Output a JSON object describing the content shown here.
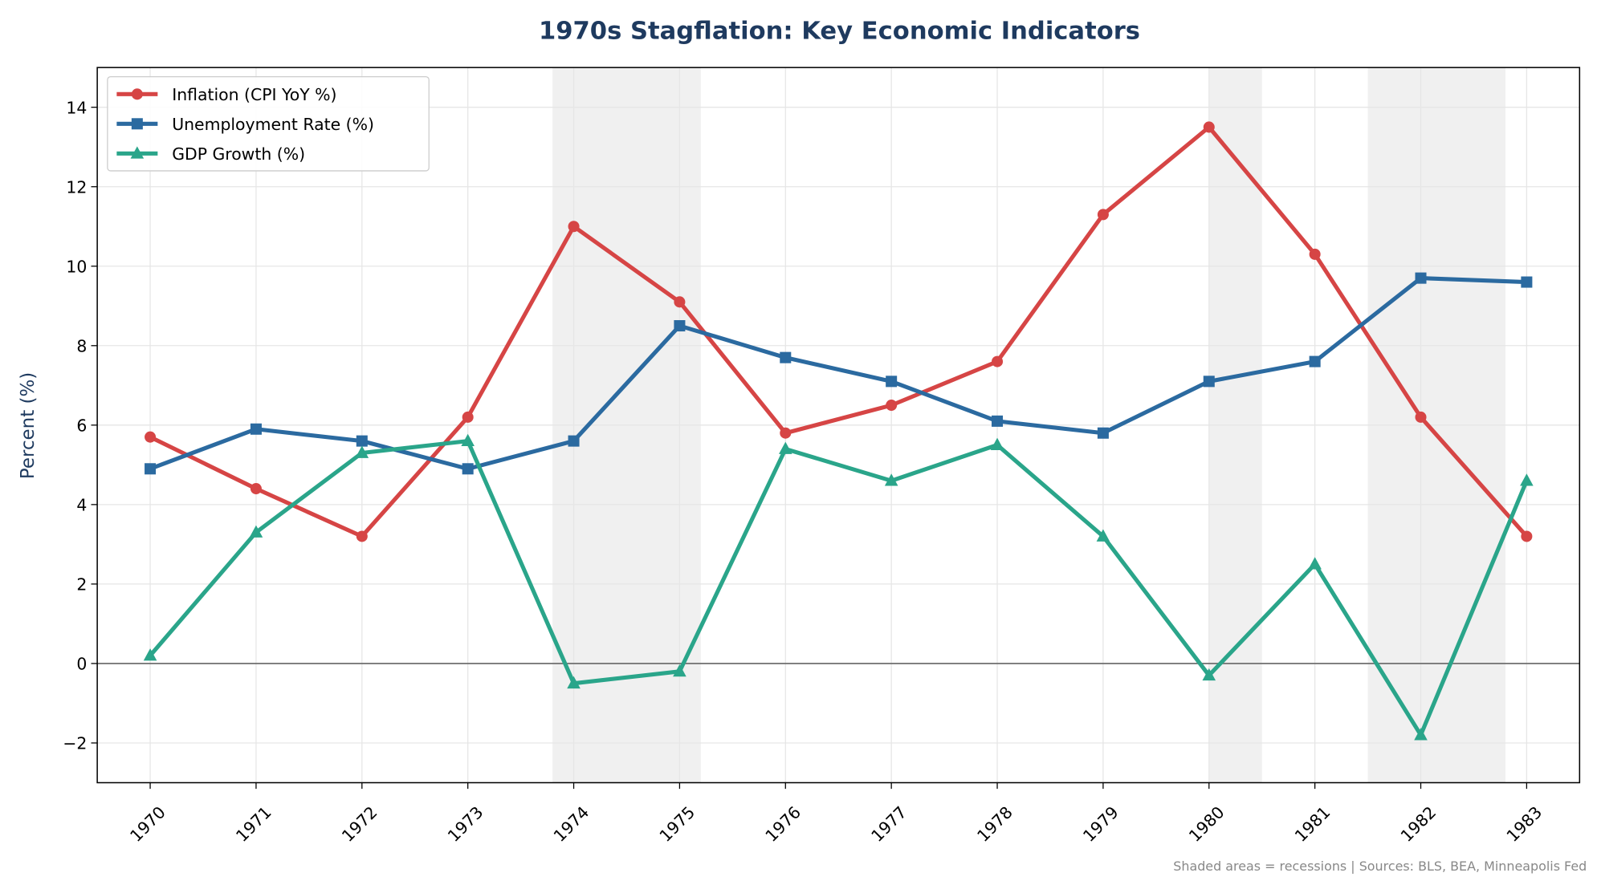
{
  "chart_data": {
    "type": "line",
    "title": "1970s Stagflation: Key Economic Indicators",
    "xlabel": "",
    "ylabel": "Percent (%)",
    "x": [
      1970,
      1971,
      1972,
      1973,
      1974,
      1975,
      1976,
      1977,
      1978,
      1979,
      1980,
      1981,
      1982,
      1983
    ],
    "xlim": [
      1969.5,
      1983.5
    ],
    "ylim": [
      -3,
      15
    ],
    "yticks": [
      -2,
      0,
      2,
      4,
      6,
      8,
      10,
      12,
      14
    ],
    "grid": true,
    "legend_position": "top-left",
    "zero_line": true,
    "series": [
      {
        "name": "Inflation (CPI YoY %)",
        "color": "#d64545",
        "marker": "circle",
        "values": [
          5.7,
          4.4,
          3.2,
          6.2,
          11.0,
          9.1,
          5.8,
          6.5,
          7.6,
          11.3,
          13.5,
          10.3,
          6.2,
          3.2
        ]
      },
      {
        "name": "Unemployment Rate (%)",
        "color": "#2b6aa0",
        "marker": "square",
        "values": [
          4.9,
          5.9,
          5.6,
          4.9,
          5.6,
          8.5,
          7.7,
          7.1,
          6.1,
          5.8,
          7.1,
          7.6,
          9.7,
          9.6
        ]
      },
      {
        "name": "GDP Growth (%)",
        "color": "#2aa58a",
        "marker": "triangle",
        "values": [
          0.2,
          3.3,
          5.3,
          5.6,
          -0.5,
          -0.2,
          5.4,
          4.6,
          5.5,
          3.2,
          -0.3,
          2.5,
          -1.8,
          4.6
        ]
      }
    ],
    "recessions": [
      [
        1973.8,
        1975.2
      ],
      [
        1980.0,
        1980.5
      ],
      [
        1981.5,
        1982.8
      ]
    ],
    "footnote": "Shaded areas = recessions | Sources: BLS, BEA, Minneapolis Fed",
    "colors": {
      "title": "#1e3a5f",
      "recession_shade": "#f0f0f0"
    }
  }
}
